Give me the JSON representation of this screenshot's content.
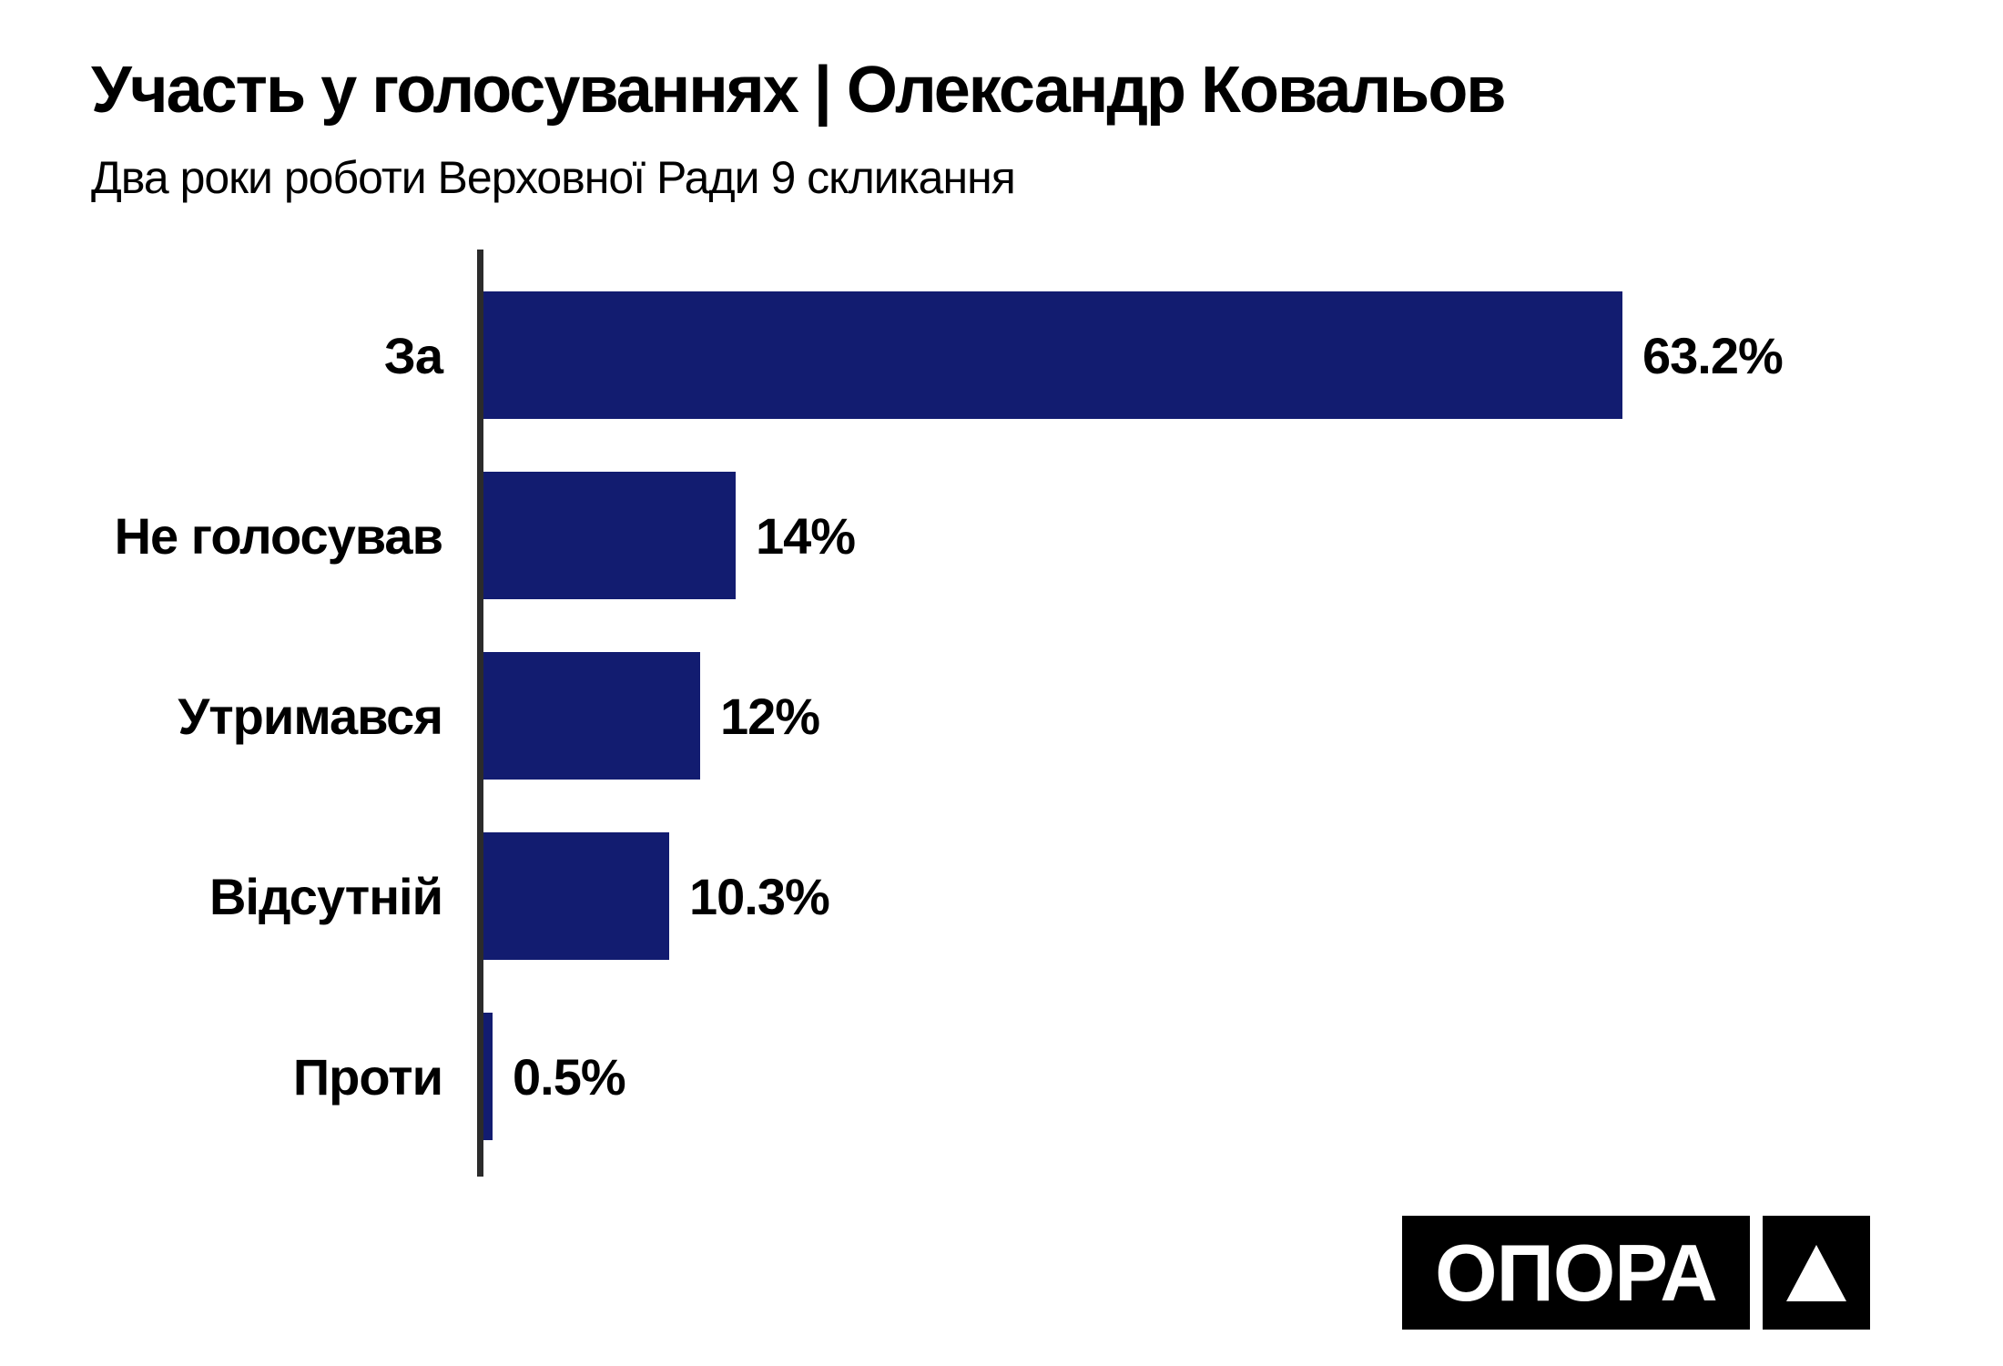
{
  "chart_data": {
    "type": "bar",
    "orientation": "horizontal",
    "title": "Участь у голосуваннях | Олександр Ковальов",
    "subtitle": "Два роки роботи Верховної Ради 9 скликання",
    "categories": [
      "За",
      "Не голосував",
      "Утримався",
      "Відсутній",
      "Проти"
    ],
    "values": [
      63.2,
      14,
      12,
      10.3,
      0.5
    ],
    "value_labels": [
      "63.2%",
      "14%",
      "12%",
      "10.3%",
      "0.5%"
    ],
    "unit": "%",
    "xlim": [
      0,
      70
    ],
    "grid": false,
    "legend": false,
    "bar_color": "#121c70",
    "axis_color": "#2b2b2b",
    "label_color": "#000000",
    "background": "#ffffff"
  },
  "logo": {
    "wordmark": "ОПОРА",
    "icon": "triangle-up",
    "background": "#000000",
    "foreground": "#ffffff"
  }
}
